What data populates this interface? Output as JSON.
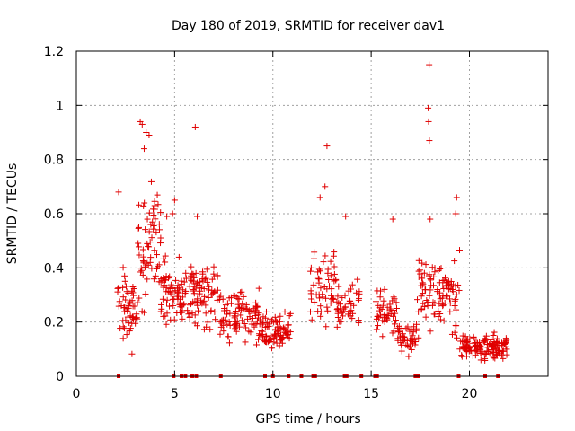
{
  "chart_data": {
    "type": "scatter",
    "title": "Day 180 of 2019, SRMTID for receiver dav1",
    "xlabel": "GPS time / hours",
    "ylabel": "SRMTID / TECUs",
    "xlim": [
      0,
      24
    ],
    "ylim": [
      0,
      1.2
    ],
    "xticks": [
      "0",
      "5",
      "10",
      "15",
      "20"
    ],
    "xtick_values": [
      0,
      5,
      10,
      15,
      20
    ],
    "yticks": [
      "0",
      "0.2",
      "0.4",
      "0.6",
      "0.8",
      "1",
      "1.2"
    ],
    "ytick_values": [
      0,
      0.2,
      0.4,
      0.6,
      0.8,
      1.0,
      1.2
    ],
    "grid": true,
    "marker": "+",
    "color": "#e00000",
    "outliers": [
      {
        "x": 2.15,
        "y": 0.68
      },
      {
        "x": 3.25,
        "y": 0.94
      },
      {
        "x": 3.35,
        "y": 0.93
      },
      {
        "x": 3.55,
        "y": 0.9
      },
      {
        "x": 3.7,
        "y": 0.89
      },
      {
        "x": 3.45,
        "y": 0.84
      },
      {
        "x": 6.05,
        "y": 0.92
      },
      {
        "x": 12.75,
        "y": 0.85
      },
      {
        "x": 12.65,
        "y": 0.7
      },
      {
        "x": 12.4,
        "y": 0.66
      },
      {
        "x": 17.95,
        "y": 1.15
      },
      {
        "x": 17.9,
        "y": 0.99
      },
      {
        "x": 17.92,
        "y": 0.94
      },
      {
        "x": 17.96,
        "y": 0.87
      },
      {
        "x": 19.35,
        "y": 0.66
      },
      {
        "x": 19.3,
        "y": 0.6
      },
      {
        "x": 16.1,
        "y": 0.58
      },
      {
        "x": 18.0,
        "y": 0.58
      },
      {
        "x": 6.15,
        "y": 0.59
      },
      {
        "x": 13.7,
        "y": 0.59
      },
      {
        "x": 4.6,
        "y": 0.59
      },
      {
        "x": 5.0,
        "y": 0.65
      },
      {
        "x": 4.9,
        "y": 0.6
      }
    ],
    "clusters": [
      {
        "x_range": [
          2.1,
          3.1
        ],
        "y_mean": 0.26,
        "y_spread": 0.12,
        "count": 55
      },
      {
        "x_range": [
          3.1,
          4.3
        ],
        "y_mean": 0.48,
        "y_spread": 0.2,
        "count": 65
      },
      {
        "x_range": [
          4.3,
          7.3
        ],
        "y_mean": 0.3,
        "y_spread": 0.1,
        "count": 160
      },
      {
        "x_range": [
          7.3,
          9.3
        ],
        "y_mean": 0.22,
        "y_spread": 0.08,
        "count": 95
      },
      {
        "x_range": [
          9.3,
          10.9
        ],
        "y_mean": 0.17,
        "y_spread": 0.06,
        "count": 90
      },
      {
        "x_range": [
          11.9,
          13.2
        ],
        "y_mean": 0.34,
        "y_spread": 0.12,
        "count": 55
      },
      {
        "x_range": [
          13.2,
          14.4
        ],
        "y_mean": 0.25,
        "y_spread": 0.1,
        "count": 45
      },
      {
        "x_range": [
          15.2,
          16.3
        ],
        "y_mean": 0.24,
        "y_spread": 0.07,
        "count": 45
      },
      {
        "x_range": [
          16.3,
          17.3
        ],
        "y_mean": 0.15,
        "y_spread": 0.05,
        "count": 45
      },
      {
        "x_range": [
          17.3,
          19.5
        ],
        "y_mean": 0.3,
        "y_spread": 0.12,
        "count": 110
      },
      {
        "x_range": [
          19.5,
          21.9
        ],
        "y_mean": 0.11,
        "y_spread": 0.04,
        "count": 140
      }
    ],
    "zero_markers": [
      2.15,
      4.95,
      5.35,
      5.55,
      5.9,
      6.1,
      7.35,
      9.6,
      10.0,
      10.8,
      11.45,
      12.05,
      12.15,
      13.65,
      13.75,
      14.5,
      15.2,
      15.3,
      17.25,
      17.4,
      19.45,
      20.8,
      21.45
    ]
  }
}
